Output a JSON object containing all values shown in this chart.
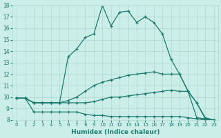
{
  "title": "",
  "xlabel": "Humidex (Indice chaleur)",
  "bg_color": "#cceee8",
  "line_color": "#1a7a6e",
  "grid_color": "#b0d8d0",
  "xlim": [
    -0.5,
    23.5
  ],
  "ylim": [
    8,
    18
  ],
  "xticks": [
    0,
    1,
    2,
    3,
    4,
    5,
    6,
    7,
    8,
    9,
    10,
    11,
    12,
    13,
    14,
    15,
    16,
    17,
    18,
    19,
    20,
    21,
    22,
    23
  ],
  "yticks": [
    8,
    9,
    10,
    11,
    12,
    13,
    14,
    15,
    16,
    17,
    18
  ],
  "lines": [
    {
      "x": [
        0,
        1,
        2,
        3,
        4,
        5,
        6,
        7,
        8,
        9,
        10,
        11,
        12,
        13,
        14,
        15,
        16,
        17,
        18,
        19,
        20,
        21,
        22,
        23
      ],
      "y": [
        9.9,
        9.9,
        8.7,
        8.7,
        8.7,
        8.7,
        8.7,
        8.7,
        8.5,
        8.4,
        8.4,
        8.3,
        8.3,
        8.3,
        8.3,
        8.3,
        8.3,
        8.3,
        8.3,
        8.3,
        8.2,
        8.1,
        8.0,
        8.0
      ]
    },
    {
      "x": [
        0,
        1,
        2,
        3,
        4,
        5,
        6,
        7,
        8,
        9,
        10,
        11,
        12,
        13,
        14,
        15,
        16,
        17,
        18,
        19,
        20,
        21,
        22,
        23
      ],
      "y": [
        9.9,
        9.9,
        9.5,
        9.5,
        9.5,
        9.5,
        9.5,
        9.5,
        9.5,
        9.6,
        9.8,
        10.0,
        10.0,
        10.1,
        10.2,
        10.3,
        10.4,
        10.5,
        10.6,
        10.5,
        10.5,
        8.2,
        8.1,
        8.0
      ]
    },
    {
      "x": [
        0,
        1,
        2,
        3,
        4,
        5,
        6,
        7,
        8,
        9,
        10,
        11,
        12,
        13,
        14,
        15,
        16,
        17,
        18,
        19,
        20,
        21,
        22,
        23
      ],
      "y": [
        9.9,
        9.9,
        9.5,
        9.5,
        9.5,
        9.5,
        9.7,
        10.0,
        10.5,
        11.0,
        11.3,
        11.5,
        11.7,
        11.9,
        12.0,
        12.1,
        12.2,
        12.0,
        12.0,
        12.0,
        10.5,
        9.5,
        8.1,
        8.0
      ]
    },
    {
      "x": [
        0,
        1,
        2,
        3,
        4,
        5,
        6,
        7,
        8,
        9,
        10,
        11,
        12,
        13,
        14,
        15,
        16,
        17,
        18,
        19,
        20,
        21,
        22,
        23
      ],
      "y": [
        9.9,
        9.9,
        9.5,
        9.5,
        9.5,
        9.5,
        13.5,
        14.2,
        15.2,
        15.5,
        18.0,
        16.2,
        17.4,
        17.5,
        16.5,
        17.0,
        16.5,
        15.5,
        13.3,
        12.0,
        10.5,
        9.5,
        8.2,
        8.0
      ]
    }
  ]
}
